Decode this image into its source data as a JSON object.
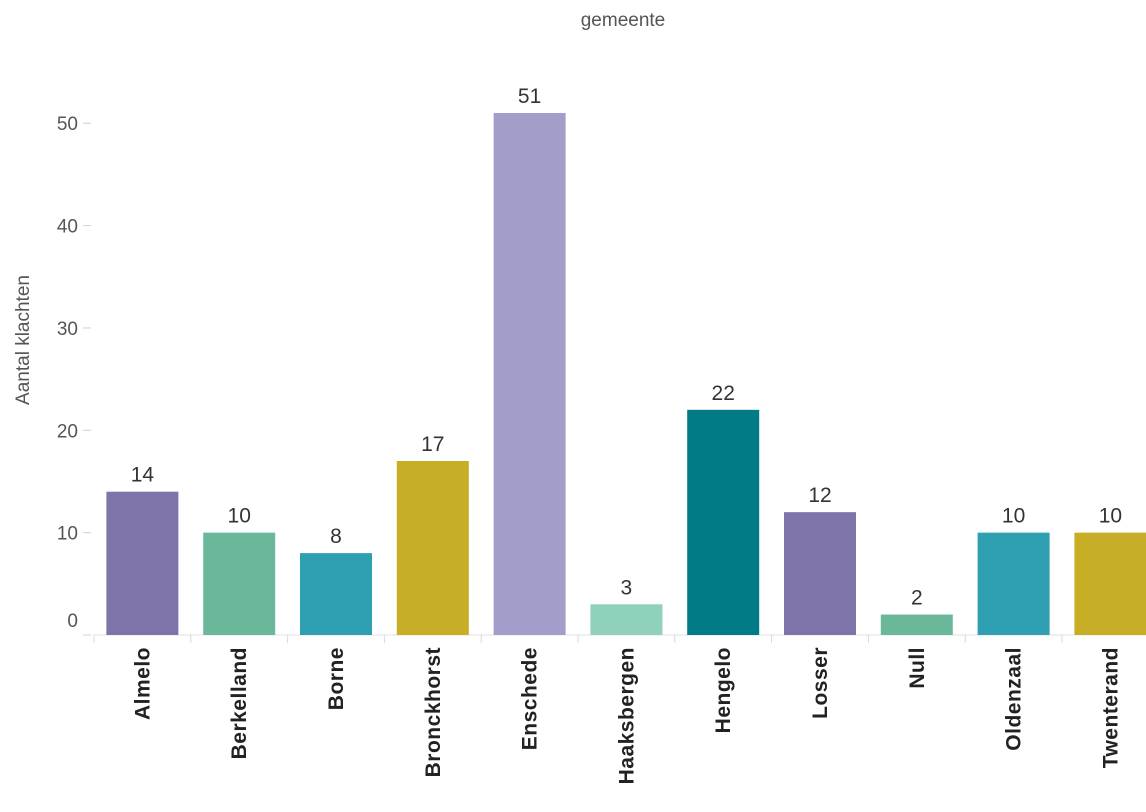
{
  "chart_data": {
    "type": "bar",
    "title": "gemeente",
    "xlabel": "",
    "ylabel": "Aantal klachten",
    "ylim": [
      0,
      55
    ],
    "yticks": [
      0,
      10,
      20,
      30,
      40,
      50
    ],
    "grid": false,
    "categories": [
      "Almelo",
      "Berkelland",
      "Borne",
      "Bronckhorst",
      "Enschede",
      "Haaksbergen",
      "Hengelo",
      "Losser",
      "Null",
      "Oldenzaal",
      "Twenterand"
    ],
    "values": [
      14,
      10,
      8,
      17,
      51,
      3,
      22,
      12,
      2,
      10,
      10
    ],
    "colors": [
      "#7e74a9",
      "#6ab899",
      "#2fa0b2",
      "#c8ad26",
      "#a39dc9",
      "#8fd1bb",
      "#017b86",
      "#7e74a9",
      "#6ab899",
      "#2fa0b2",
      "#c8ad26"
    ]
  }
}
